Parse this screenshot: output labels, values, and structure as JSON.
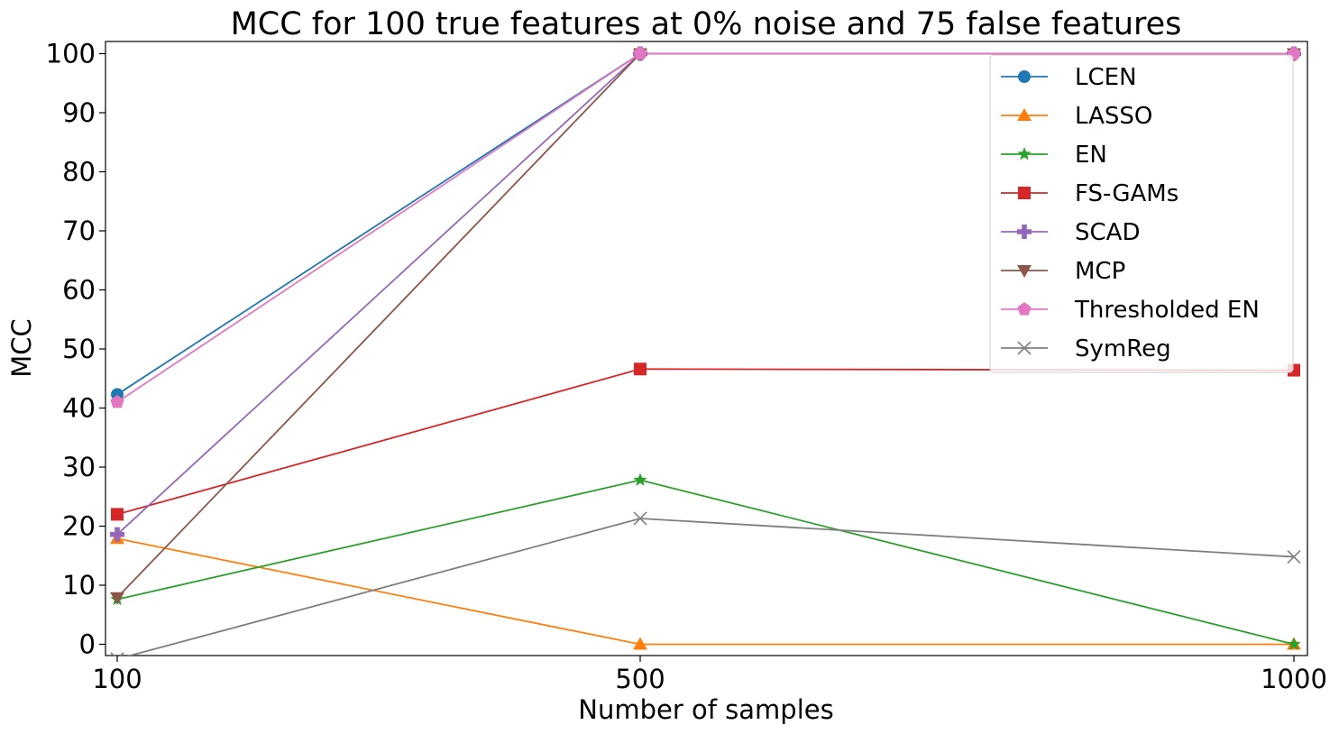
{
  "chart_data": {
    "type": "line",
    "title": "MCC for 100 true features at 0% noise and 75 false features",
    "xlabel": "Number of samples",
    "ylabel": "MCC",
    "x": [
      100,
      500,
      1000
    ],
    "x_tick_labels": [
      "100",
      "500",
      "1000"
    ],
    "y_ticks": [
      0,
      10,
      20,
      30,
      40,
      50,
      60,
      70,
      80,
      90,
      100
    ],
    "y_tick_labels": [
      "0",
      "10",
      "20",
      "30",
      "40",
      "50",
      "60",
      "70",
      "80",
      "90",
      "100"
    ],
    "ylim": [
      -2,
      102
    ],
    "grid": false,
    "legend_position": "top-right",
    "series": [
      {
        "name": "LCEN",
        "values": [
          42.3,
          100,
          100
        ],
        "color": "#1f77b4",
        "marker": "circle"
      },
      {
        "name": "LASSO",
        "values": [
          17.9,
          0,
          0
        ],
        "color": "#ff7f0e",
        "marker": "triangle-up"
      },
      {
        "name": "EN",
        "values": [
          7.6,
          27.8,
          0
        ],
        "color": "#2ca02c",
        "marker": "star"
      },
      {
        "name": "FS-GAMs",
        "values": [
          22.0,
          46.6,
          46.4
        ],
        "color": "#d62728",
        "marker": "square"
      },
      {
        "name": "SCAD",
        "values": [
          18.6,
          100,
          100
        ],
        "color": "#9467bd",
        "marker": "plus"
      },
      {
        "name": "MCP",
        "values": [
          7.9,
          100,
          100
        ],
        "color": "#8c564b",
        "marker": "triangle-down"
      },
      {
        "name": "Thresholded EN",
        "values": [
          41.0,
          100,
          100
        ],
        "color": "#e377c2",
        "marker": "pentagon"
      },
      {
        "name": "SymReg",
        "values": [
          -2.5,
          21.3,
          14.8
        ],
        "color": "#7f7f7f",
        "marker": "x"
      }
    ]
  }
}
